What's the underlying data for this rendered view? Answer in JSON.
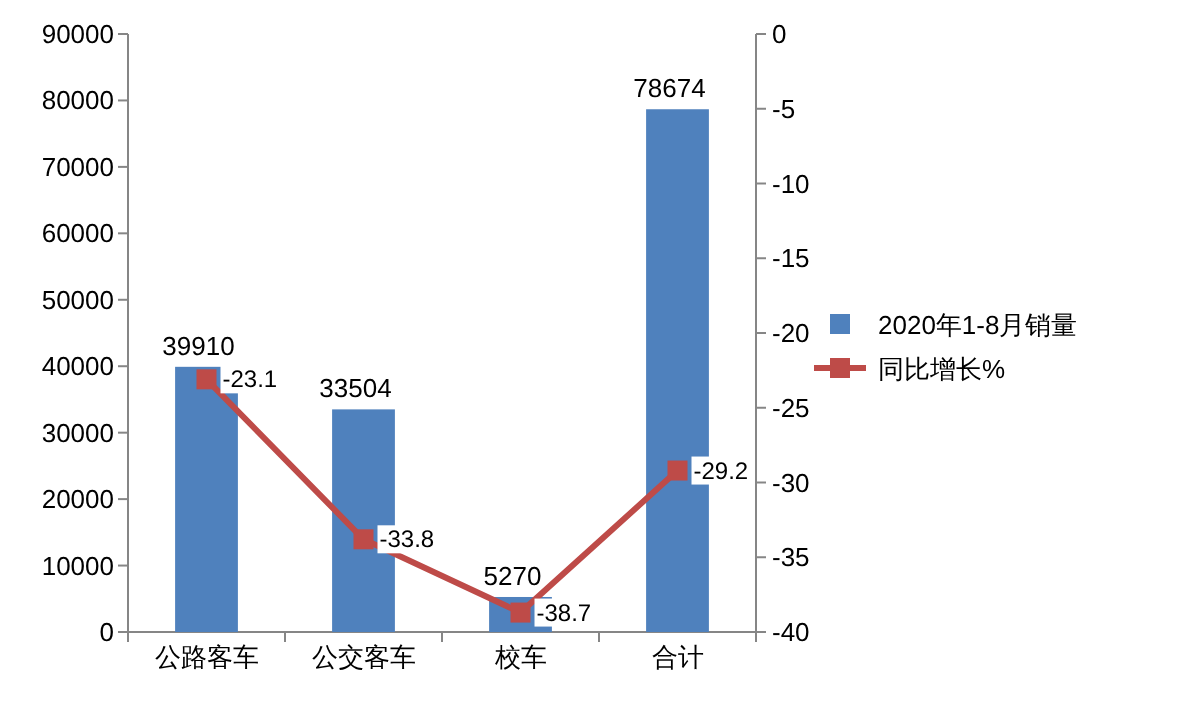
{
  "chart_data": {
    "type": "bar",
    "categories": [
      "公路客车",
      "公交客车",
      "校车",
      "合计"
    ],
    "series": [
      {
        "name": "2020年1-8月销量",
        "color": "#4f81bd",
        "values": [
          39910,
          33504,
          5270,
          78674
        ]
      },
      {
        "name": "同比增长%",
        "type": "line",
        "axis": "y2",
        "color": "#be4b48",
        "marker": "square",
        "values": [
          -23.1,
          -33.8,
          -38.7,
          -29.2
        ]
      }
    ],
    "ylim": [
      0,
      90000
    ],
    "yticks": [
      0,
      10000,
      20000,
      30000,
      40000,
      50000,
      60000,
      70000,
      80000,
      90000
    ],
    "y2lim": [
      -40,
      0
    ],
    "y2ticks": [
      -40,
      -35,
      -30,
      -25,
      -20,
      -15,
      -10,
      -5,
      0
    ],
    "legend": "right",
    "data_labels": true
  }
}
